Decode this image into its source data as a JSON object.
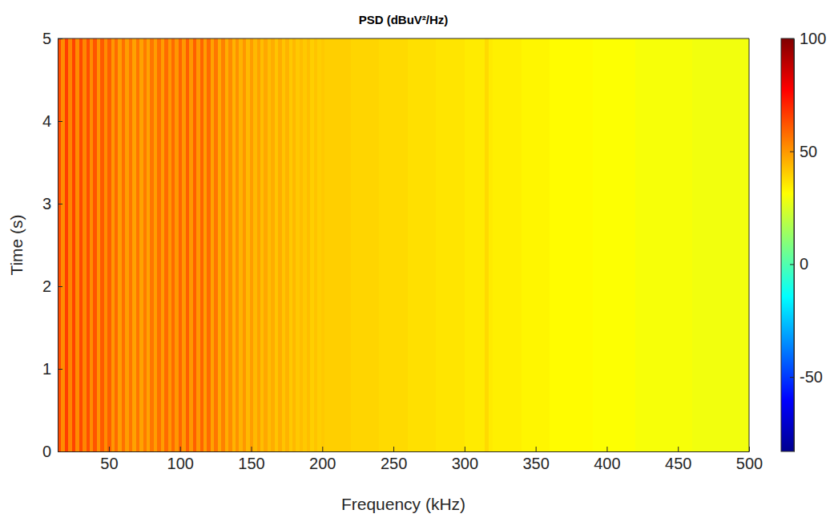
{
  "chart_data": {
    "type": "heatmap",
    "title": "PSD (dBuV²/Hz)",
    "x_label": "Frequency (kHz)",
    "y_label": "Time (s)",
    "xlim": [
      14,
      500
    ],
    "xticks": [
      50,
      100,
      150,
      200,
      250,
      300,
      350,
      400,
      450,
      500
    ],
    "ylim": [
      0,
      5
    ],
    "yticks": [
      0,
      1,
      2,
      3,
      4,
      5
    ],
    "x_edges": [
      14,
      16.5,
      19,
      21.5,
      24,
      26.5,
      29,
      31.5,
      34,
      36.5,
      39,
      41.5,
      44,
      46.5,
      49,
      51.5,
      54,
      56.5,
      59,
      61.5,
      64,
      66.5,
      69,
      71.5,
      74,
      76.5,
      79,
      81.5,
      84,
      86.5,
      89,
      91.5,
      94,
      96.5,
      99,
      101.5,
      104,
      106.5,
      109,
      111.5,
      114,
      116.5,
      119,
      121.5,
      124,
      126.5,
      129,
      131.5,
      134,
      136.5,
      139,
      141.5,
      144,
      146.5,
      149,
      151.5,
      154,
      156.5,
      159,
      161.5,
      164,
      166.5,
      169,
      171.5,
      174,
      176.5,
      179,
      181.5,
      184,
      186.5,
      189,
      191.5,
      194,
      196.5,
      199,
      201.5,
      210,
      220,
      230,
      240,
      250,
      260,
      270,
      280,
      290,
      300,
      310,
      314,
      317,
      320,
      330,
      340,
      350,
      360,
      370,
      380,
      390,
      400,
      410,
      420,
      430,
      440,
      450,
      460,
      470,
      480,
      490,
      500
    ],
    "y_edges": [
      0,
      5
    ],
    "z": [
      [
        64,
        52,
        66,
        53,
        65,
        52,
        64,
        53,
        63,
        52,
        62,
        51,
        61,
        52,
        60,
        50,
        58,
        49,
        57,
        49,
        56,
        48,
        56,
        48,
        55,
        48,
        56,
        49,
        57,
        49,
        58,
        50,
        58,
        50,
        59,
        50,
        60,
        50,
        60,
        50,
        59,
        49,
        58,
        48,
        56,
        47,
        54,
        46,
        52,
        45,
        51,
        45,
        50,
        44,
        49,
        44,
        48,
        43,
        47,
        43,
        46,
        42,
        46,
        42,
        45,
        41,
        44,
        41,
        43,
        41,
        43,
        40,
        42,
        40,
        41,
        40,
        40,
        39,
        39,
        38,
        38,
        37,
        37,
        36,
        36,
        35,
        35,
        38,
        35,
        34,
        34,
        33,
        33,
        32,
        32,
        32,
        31,
        31,
        31,
        30,
        30,
        30,
        30,
        29,
        29,
        29,
        29
      ]
    ],
    "colorbar": {
      "lim": [
        -83,
        100
      ],
      "ticks": [
        -50,
        0,
        50,
        100
      ]
    },
    "grid": false
  }
}
